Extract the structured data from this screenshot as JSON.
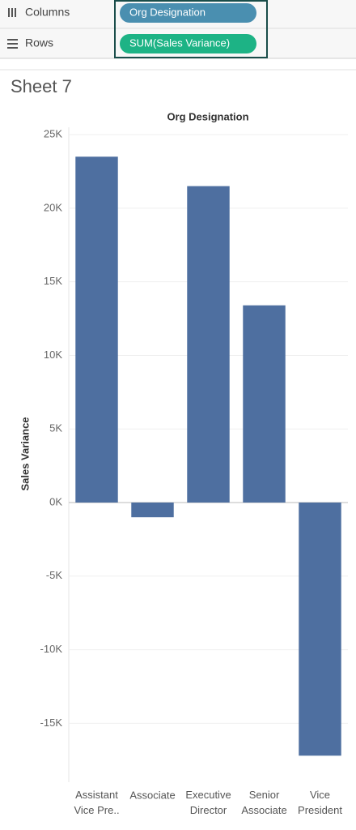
{
  "shelves": {
    "columns_label": "Columns",
    "columns_pill": "Org Designation",
    "rows_label": "Rows",
    "rows_pill": "SUM(Sales Variance)"
  },
  "sheet_title": "Sheet 7",
  "chart_data": {
    "type": "bar",
    "x_label": "Org Designation",
    "y_label": "Sales Variance",
    "categories": [
      "Assistant Vice Pre..",
      "Associate",
      "Executive Director",
      "Senior Associate",
      "Vice President"
    ],
    "values": [
      23500,
      -1000,
      21500,
      13400,
      -17200
    ],
    "color": "#4e6fa0",
    "ylim": [
      -19000,
      25500
    ],
    "yticks": [
      {
        "value": -15000,
        "label": "-15K"
      },
      {
        "value": -10000,
        "label": "-10K"
      },
      {
        "value": -5000,
        "label": "-5K"
      },
      {
        "value": 0,
        "label": "0K"
      },
      {
        "value": 5000,
        "label": "5K"
      },
      {
        "value": 10000,
        "label": "10K"
      },
      {
        "value": 15000,
        "label": "15K"
      },
      {
        "value": 20000,
        "label": "20K"
      },
      {
        "value": 25000,
        "label": "25K"
      }
    ],
    "grid": true
  }
}
